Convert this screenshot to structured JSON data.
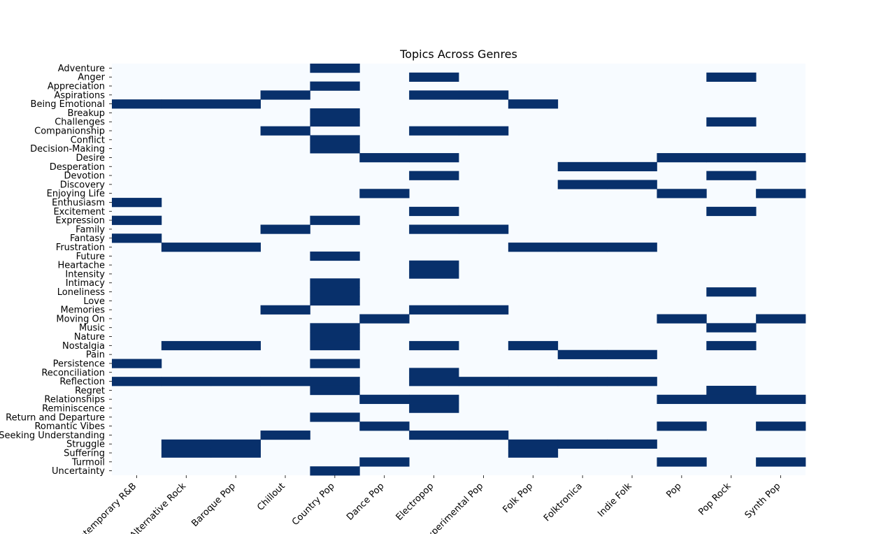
{
  "chart_data": {
    "type": "heatmap",
    "title": "Topics Across Genres",
    "xlabel": "",
    "ylabel": "",
    "colors": {
      "on": "#08306b",
      "off": "#f7fbff"
    },
    "x_categories": [
      "Contemporary R&B",
      "Alternative Rock",
      "Baroque Pop",
      "Chillout",
      "Country Pop",
      "Dance Pop",
      "Electropop",
      "Experimental Pop",
      "Folk Pop",
      "Folktronica",
      "Indie Folk",
      "Pop",
      "Pop Rock",
      "Synth Pop"
    ],
    "y_categories": [
      "Adventure",
      "Anger",
      "Appreciation",
      "Aspirations",
      "Being Emotional",
      "Breakup",
      "Challenges",
      "Companionship",
      "Conflict",
      "Decision-Making",
      "Desire",
      "Desperation",
      "Devotion",
      "Discovery",
      "Enjoying Life",
      "Enthusiasm",
      "Excitement",
      "Expression",
      "Family",
      "Fantasy",
      "Frustration",
      "Future",
      "Heartache",
      "Intensity",
      "Intimacy",
      "Loneliness",
      "Love",
      "Memories",
      "Moving On",
      "Music",
      "Nature",
      "Nostalgia",
      "Pain",
      "Persistence",
      "Reconciliation",
      "Reflection",
      "Regret",
      "Relationships",
      "Reminiscence",
      "Return and Departure",
      "Romantic Vibes",
      "Seeking Understanding",
      "Struggle",
      "Suffering",
      "Turmoil",
      "Uncertainty"
    ],
    "values": [
      [
        0,
        0,
        0,
        0,
        1,
        0,
        0,
        0,
        0,
        0,
        0,
        0,
        0,
        0
      ],
      [
        0,
        0,
        0,
        0,
        0,
        0,
        1,
        0,
        0,
        0,
        0,
        0,
        1,
        0
      ],
      [
        0,
        0,
        0,
        0,
        1,
        0,
        0,
        0,
        0,
        0,
        0,
        0,
        0,
        0
      ],
      [
        0,
        0,
        0,
        1,
        0,
        0,
        1,
        1,
        0,
        0,
        0,
        0,
        0,
        0
      ],
      [
        1,
        1,
        1,
        0,
        0,
        0,
        0,
        0,
        1,
        0,
        0,
        0,
        0,
        0
      ],
      [
        0,
        0,
        0,
        0,
        1,
        0,
        0,
        0,
        0,
        0,
        0,
        0,
        0,
        0
      ],
      [
        0,
        0,
        0,
        0,
        1,
        0,
        0,
        0,
        0,
        0,
        0,
        0,
        1,
        0
      ],
      [
        0,
        0,
        0,
        1,
        0,
        0,
        1,
        1,
        0,
        0,
        0,
        0,
        0,
        0
      ],
      [
        0,
        0,
        0,
        0,
        1,
        0,
        0,
        0,
        0,
        0,
        0,
        0,
        0,
        0
      ],
      [
        0,
        0,
        0,
        0,
        1,
        0,
        0,
        0,
        0,
        0,
        0,
        0,
        0,
        0
      ],
      [
        0,
        0,
        0,
        0,
        0,
        1,
        1,
        0,
        0,
        0,
        0,
        1,
        1,
        1
      ],
      [
        0,
        0,
        0,
        0,
        0,
        0,
        0,
        0,
        0,
        1,
        1,
        0,
        0,
        0
      ],
      [
        0,
        0,
        0,
        0,
        0,
        0,
        1,
        0,
        0,
        0,
        0,
        0,
        1,
        0
      ],
      [
        0,
        0,
        0,
        0,
        0,
        0,
        0,
        0,
        0,
        1,
        1,
        0,
        0,
        0
      ],
      [
        0,
        0,
        0,
        0,
        0,
        1,
        0,
        0,
        0,
        0,
        0,
        1,
        0,
        1
      ],
      [
        1,
        0,
        0,
        0,
        0,
        0,
        0,
        0,
        0,
        0,
        0,
        0,
        0,
        0
      ],
      [
        0,
        0,
        0,
        0,
        0,
        0,
        1,
        0,
        0,
        0,
        0,
        0,
        1,
        0
      ],
      [
        1,
        0,
        0,
        0,
        1,
        0,
        0,
        0,
        0,
        0,
        0,
        0,
        0,
        0
      ],
      [
        0,
        0,
        0,
        1,
        0,
        0,
        1,
        1,
        0,
        0,
        0,
        0,
        0,
        0
      ],
      [
        1,
        0,
        0,
        0,
        0,
        0,
        0,
        0,
        0,
        0,
        0,
        0,
        0,
        0
      ],
      [
        0,
        1,
        1,
        0,
        0,
        0,
        0,
        0,
        1,
        1,
        1,
        0,
        0,
        0
      ],
      [
        0,
        0,
        0,
        0,
        1,
        0,
        0,
        0,
        0,
        0,
        0,
        0,
        0,
        0
      ],
      [
        0,
        0,
        0,
        0,
        0,
        0,
        1,
        0,
        0,
        0,
        0,
        0,
        0,
        0
      ],
      [
        0,
        0,
        0,
        0,
        0,
        0,
        1,
        0,
        0,
        0,
        0,
        0,
        0,
        0
      ],
      [
        0,
        0,
        0,
        0,
        1,
        0,
        0,
        0,
        0,
        0,
        0,
        0,
        0,
        0
      ],
      [
        0,
        0,
        0,
        0,
        1,
        0,
        0,
        0,
        0,
        0,
        0,
        0,
        1,
        0
      ],
      [
        0,
        0,
        0,
        0,
        1,
        0,
        0,
        0,
        0,
        0,
        0,
        0,
        0,
        0
      ],
      [
        0,
        0,
        0,
        1,
        0,
        0,
        1,
        1,
        0,
        0,
        0,
        0,
        0,
        0
      ],
      [
        0,
        0,
        0,
        0,
        0,
        1,
        0,
        0,
        0,
        0,
        0,
        1,
        0,
        1
      ],
      [
        0,
        0,
        0,
        0,
        1,
        0,
        0,
        0,
        0,
        0,
        0,
        0,
        1,
        0
      ],
      [
        0,
        0,
        0,
        0,
        1,
        0,
        0,
        0,
        0,
        0,
        0,
        0,
        0,
        0
      ],
      [
        0,
        1,
        1,
        0,
        1,
        0,
        1,
        0,
        1,
        0,
        0,
        0,
        1,
        0
      ],
      [
        0,
        0,
        0,
        0,
        0,
        0,
        0,
        0,
        0,
        1,
        1,
        0,
        0,
        0
      ],
      [
        1,
        0,
        0,
        0,
        1,
        0,
        0,
        0,
        0,
        0,
        0,
        0,
        0,
        0
      ],
      [
        0,
        0,
        0,
        0,
        0,
        0,
        1,
        0,
        0,
        0,
        0,
        0,
        0,
        0
      ],
      [
        1,
        1,
        1,
        1,
        1,
        0,
        1,
        1,
        1,
        1,
        1,
        0,
        0,
        0
      ],
      [
        0,
        0,
        0,
        0,
        1,
        0,
        0,
        0,
        0,
        0,
        0,
        0,
        1,
        0
      ],
      [
        0,
        0,
        0,
        0,
        0,
        1,
        1,
        0,
        0,
        0,
        0,
        1,
        1,
        1
      ],
      [
        0,
        0,
        0,
        0,
        0,
        0,
        1,
        0,
        0,
        0,
        0,
        0,
        0,
        0
      ],
      [
        0,
        0,
        0,
        0,
        1,
        0,
        0,
        0,
        0,
        0,
        0,
        0,
        0,
        0
      ],
      [
        0,
        0,
        0,
        0,
        0,
        1,
        0,
        0,
        0,
        0,
        0,
        1,
        0,
        1
      ],
      [
        0,
        0,
        0,
        1,
        0,
        0,
        1,
        1,
        0,
        0,
        0,
        0,
        0,
        0
      ],
      [
        0,
        1,
        1,
        0,
        0,
        0,
        0,
        0,
        1,
        1,
        1,
        0,
        0,
        0
      ],
      [
        0,
        1,
        1,
        0,
        0,
        0,
        0,
        0,
        1,
        0,
        0,
        0,
        0,
        0
      ],
      [
        0,
        0,
        0,
        0,
        0,
        1,
        0,
        0,
        0,
        0,
        0,
        1,
        0,
        1
      ],
      [
        0,
        0,
        0,
        0,
        1,
        0,
        0,
        0,
        0,
        0,
        0,
        0,
        0,
        0
      ]
    ]
  }
}
